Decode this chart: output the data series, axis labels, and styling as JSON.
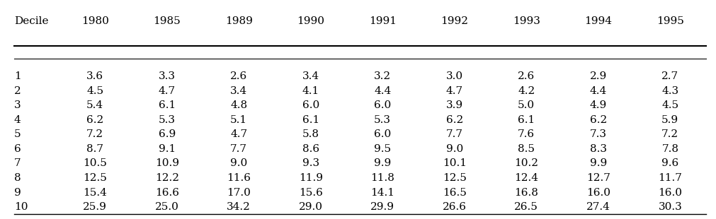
{
  "columns": [
    "Decile",
    "1980",
    "1985",
    "1989",
    "1990",
    "1991",
    "1992",
    "1993",
    "1994",
    "1995"
  ],
  "rows": [
    [
      "1",
      "3.6",
      "3.3",
      "2.6",
      "3.4",
      "3.2",
      "3.0",
      "2.6",
      "2.9",
      "2.7"
    ],
    [
      "2",
      "4.5",
      "4.7",
      "3.4",
      "4.1",
      "4.4",
      "4.7",
      "4.2",
      "4.4",
      "4.3"
    ],
    [
      "3",
      "5.4",
      "6.1",
      "4.8",
      "6.0",
      "6.0",
      "3.9",
      "5.0",
      "4.9",
      "4.5"
    ],
    [
      "4",
      "6.2",
      "5.3",
      "5.1",
      "6.1",
      "5.3",
      "6.2",
      "6.1",
      "6.2",
      "5.9"
    ],
    [
      "5",
      "7.2",
      "6.9",
      "4.7",
      "5.8",
      "6.0",
      "7.7",
      "7.6",
      "7.3",
      "7.2"
    ],
    [
      "6",
      "8.7",
      "9.1",
      "7.7",
      "8.6",
      "9.5",
      "9.0",
      "8.5",
      "8.3",
      "7.8"
    ],
    [
      "7",
      "10.5",
      "10.9",
      "9.0",
      "9.3",
      "9.9",
      "10.1",
      "10.2",
      "9.9",
      "9.6"
    ],
    [
      "8",
      "12.5",
      "12.2",
      "11.6",
      "11.9",
      "11.8",
      "12.5",
      "12.4",
      "12.7",
      "11.7"
    ],
    [
      "9",
      "15.4",
      "16.6",
      "17.0",
      "15.6",
      "14.1",
      "16.5",
      "16.8",
      "16.0",
      "16.0"
    ],
    [
      "10",
      "25.9",
      "25.0",
      "34.2",
      "29.0",
      "29.9",
      "26.6",
      "26.5",
      "27.4",
      "30.3"
    ]
  ],
  "background_color": "#ffffff",
  "text_color": "#000000",
  "fontsize": 11,
  "header_fontsize": 11,
  "col_rel": [
    0.065,
    0.104,
    0.104,
    0.104,
    0.104,
    0.104,
    0.104,
    0.104,
    0.104,
    0.104
  ]
}
